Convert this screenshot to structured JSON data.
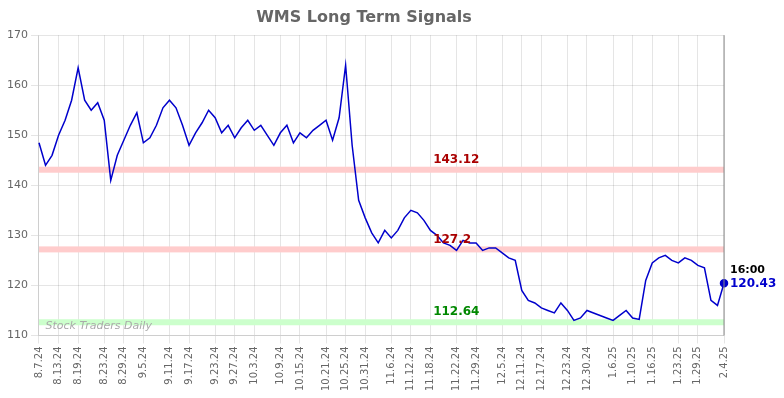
{
  "chart_data": {
    "type": "line",
    "title": "WMS Long Term Signals",
    "categories": [
      "8.7.24",
      null,
      null,
      "8.13.24",
      null,
      null,
      "8.19.24",
      null,
      null,
      null,
      "8.23.24",
      null,
      null,
      "8.29.24",
      null,
      null,
      "9.5.24",
      null,
      null,
      null,
      "9.11.24",
      null,
      null,
      "9.17.24",
      null,
      null,
      null,
      "9.23.24",
      null,
      null,
      "9.27.24",
      null,
      null,
      "10.3.24",
      null,
      null,
      null,
      "10.9.24",
      null,
      null,
      "10.15.24",
      null,
      null,
      null,
      "10.21.24",
      null,
      null,
      "10.25.24",
      null,
      null,
      "10.31.24",
      null,
      null,
      null,
      "11.6.24",
      null,
      null,
      "11.12.24",
      null,
      null,
      "11.18.24",
      null,
      null,
      null,
      "11.22.24",
      null,
      null,
      "11.29.24",
      null,
      null,
      null,
      "12.5.24",
      null,
      null,
      "12.11.24",
      null,
      null,
      "12.17.24",
      null,
      null,
      null,
      "12.23.24",
      null,
      null,
      "12.30.24",
      null,
      null,
      null,
      "1.6.25",
      null,
      null,
      "1.10.25",
      null,
      null,
      "1.16.25",
      null,
      null,
      null,
      "1.23.25",
      null,
      null,
      "1.29.25",
      null,
      null,
      null,
      "2.4.25"
    ],
    "values": [
      148.5,
      144.0,
      146.0,
      150.0,
      153.0,
      157.0,
      163.5,
      157.0,
      155.0,
      156.5,
      153.0,
      141.0,
      146.0,
      149.0,
      152.0,
      154.5,
      148.5,
      149.5,
      152.0,
      155.5,
      157.0,
      155.5,
      152.0,
      148.0,
      150.5,
      152.5,
      155.0,
      153.5,
      150.5,
      152.0,
      149.5,
      151.5,
      153.0,
      151.0,
      152.0,
      150.0,
      148.0,
      150.5,
      152.0,
      148.5,
      150.5,
      149.5,
      151.0,
      152.0,
      153.0,
      149.0,
      153.5,
      164.0,
      148.0,
      137.0,
      133.5,
      130.5,
      128.5,
      131.0,
      129.5,
      131.0,
      133.5,
      135.0,
      134.5,
      133.0,
      131.0,
      130.0,
      128.5,
      128.0,
      127.0,
      129.0,
      128.5,
      128.5,
      127.0,
      127.5,
      127.5,
      126.5,
      125.5,
      125.0,
      119.0,
      117.0,
      116.5,
      115.5,
      115.0,
      114.5,
      116.5,
      115.0,
      113.0,
      113.5,
      115.0,
      114.5,
      114.0,
      113.5,
      113.0,
      114.0,
      115.0,
      113.5,
      113.2,
      121.0,
      124.5,
      125.5,
      126.0,
      125.0,
      124.5,
      125.5,
      125.0,
      124.0,
      123.5,
      117.0,
      116.0,
      120.43
    ],
    "color": "#0000cc",
    "hlines": [
      {
        "value": 143.12,
        "color": "#ffcccc",
        "label_color": "#aa0000"
      },
      {
        "value": 127.2,
        "color": "#ffcccc",
        "label_color": "#aa0000"
      },
      {
        "value": 112.64,
        "color": "#ccffcc",
        "label_color": "#008800"
      }
    ],
    "last_point_labels": [
      {
        "text": "16:00",
        "color": "#000000"
      },
      {
        "text": "120.43",
        "color": "#0000cc"
      }
    ],
    "watermark": {
      "text": "Stock Traders Daily",
      "color": "#aaaaaa"
    },
    "ylim": [
      110,
      170
    ],
    "yticks": [
      110,
      120,
      130,
      140,
      150,
      160,
      170
    ],
    "grid": true
  }
}
